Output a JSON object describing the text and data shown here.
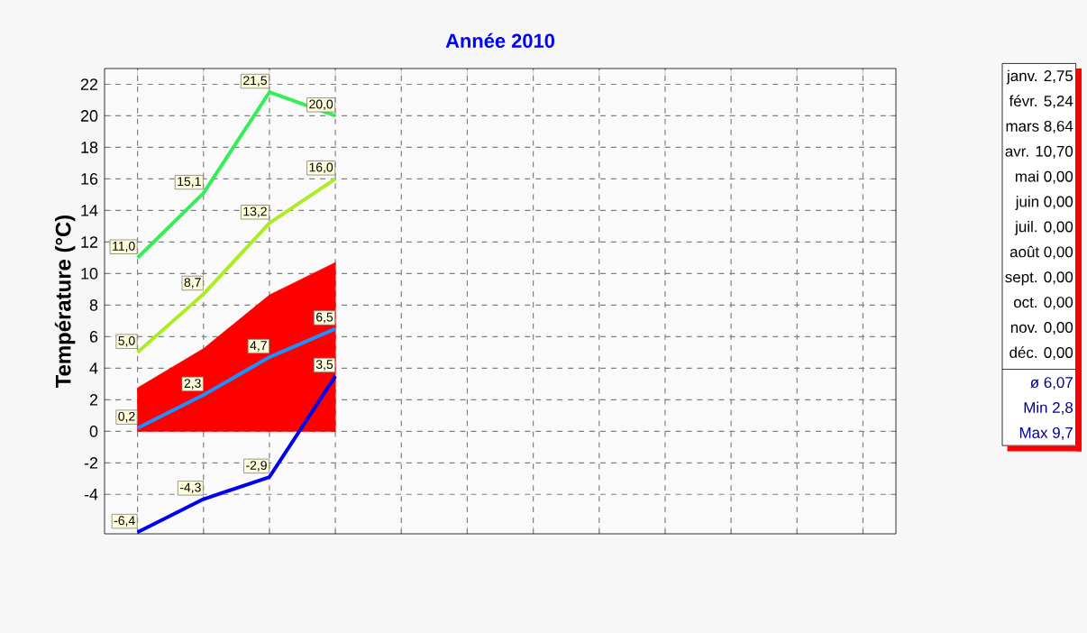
{
  "chart_data": {
    "type": "line",
    "title": "Année  2010",
    "ylabel": "Température  (°C)",
    "categories": [
      null,
      null,
      null,
      null,
      null,
      null,
      null,
      null,
      null,
      null,
      null,
      null
    ],
    "series": [
      {
        "color": "#33ee55",
        "values": [
          11.0,
          15.1,
          21.5,
          20.0,
          null,
          null,
          null,
          null,
          null,
          null,
          null,
          null
        ],
        "value_labels": [
          "11,0",
          "15,1",
          "21,5",
          "20,0",
          null,
          null,
          null,
          null,
          null,
          null,
          null,
          null
        ]
      },
      {
        "color": "#aaee22",
        "values": [
          5.0,
          8.7,
          13.2,
          16.0,
          null,
          null,
          null,
          null,
          null,
          null,
          null,
          null
        ],
        "value_labels": [
          "5,0",
          "8,7",
          "13,2",
          "16,0",
          null,
          null,
          null,
          null,
          null,
          null,
          null,
          null
        ]
      },
      {
        "type": "area",
        "color": "#ff0000",
        "values": [
          2.75,
          5.24,
          8.64,
          10.7,
          null,
          null,
          null,
          null,
          null,
          null,
          null,
          null
        ]
      },
      {
        "color": "#1e90ff",
        "values": [
          0.2,
          2.3,
          4.7,
          6.5,
          null,
          null,
          null,
          null,
          null,
          null,
          null,
          null
        ],
        "value_labels": [
          "0,2",
          "2,3",
          "4,7",
          "6,5",
          null,
          null,
          null,
          null,
          null,
          null,
          null,
          null
        ]
      },
      {
        "color": "#0000ee",
        "values": [
          -6.4,
          -4.3,
          -2.9,
          3.5,
          null,
          null,
          null,
          null,
          null,
          null,
          null,
          null
        ],
        "value_labels": [
          "-6,4",
          "-4,3",
          "-2,9",
          "3,5",
          null,
          null,
          null,
          null,
          null,
          null,
          null,
          null
        ]
      }
    ],
    "ylim": [
      -6.5,
      23
    ],
    "yticks": [
      -4,
      -2,
      0,
      2,
      4,
      6,
      8,
      10,
      12,
      14,
      16,
      18,
      20,
      22
    ],
    "grid": true,
    "tick_labels": "y",
    "marker": "none",
    "line_style": "solid",
    "annotations": [
      "janv. 2,75",
      "févr. 5,24",
      "mars 8,64",
      "avr. 10,70",
      "mai 0,00",
      "juin 0,00",
      "juil. 0,00",
      "août 0,00",
      "sept. 0,00",
      "oct. 0,00",
      "nov. 0,00",
      "déc. 0,00",
      "ø 6,07",
      "Min 2,8",
      "Max 9,7"
    ]
  }
}
